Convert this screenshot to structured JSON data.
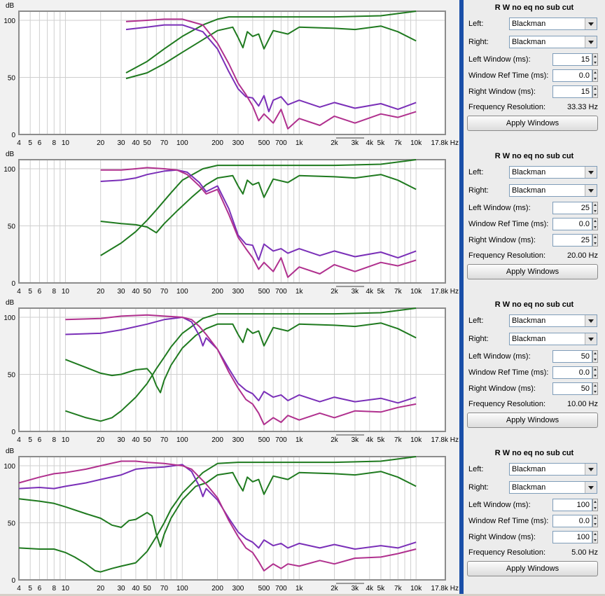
{
  "y_unit": "dB",
  "x_ticks": [
    "4",
    "5",
    "6",
    "8",
    "10",
    "20",
    "30",
    "40",
    "50",
    "70",
    "100",
    "200",
    "300",
    "500",
    "700",
    "1k",
    "2k",
    "3k",
    "4k",
    "5k",
    "7k",
    "10k",
    "17.8k Hz"
  ],
  "y_ticks": [
    "100",
    "50",
    "0"
  ],
  "colors": {
    "green": "#1f7a1f",
    "purple": "#7a2fb8",
    "magenta": "#b0308e",
    "grid": "#cfcfcf"
  },
  "apply_label": "Apply Windows",
  "labels": {
    "left": "Left:",
    "right": "Right:",
    "left_window": "Left Window (ms):",
    "ref_time": "Window Ref Time (ms):",
    "right_window": "Right Window (ms):",
    "freq_res": "Frequency Resolution:"
  },
  "panels": [
    {
      "title": "R W no eq no sub cut",
      "left": "Blackman",
      "right": "Blackman",
      "left_window": "15",
      "ref_time": "0.0",
      "right_window": "15",
      "freq_res": "33.33 Hz"
    },
    {
      "title": "R W no eq no sub cut",
      "left": "Blackman",
      "right": "Blackman",
      "left_window": "25",
      "ref_time": "0.0",
      "right_window": "25",
      "freq_res": "20.00 Hz"
    },
    {
      "title": "R W no eq no sub cut",
      "left": "Blackman",
      "right": "Blackman",
      "left_window": "50",
      "ref_time": "0.0",
      "right_window": "50",
      "freq_res": "10.00 Hz"
    },
    {
      "title": "R W no eq no sub cut",
      "left": "Blackman",
      "right": "Blackman",
      "left_window": "100",
      "ref_time": "0.0",
      "right_window": "100",
      "freq_res": "5.00 Hz"
    }
  ],
  "chart_data": [
    {
      "type": "line",
      "x_scale": "log",
      "xlim": [
        4,
        17800
      ],
      "ylim": [
        0,
        108
      ],
      "ylabel": "dB",
      "grid": true,
      "series": [
        {
          "color": "green",
          "x": [
            33,
            50,
            70,
            100,
            150,
            200,
            250,
            300,
            400,
            500,
            700,
            1000,
            2000,
            5000,
            10000
          ],
          "y": [
            54,
            64,
            75,
            86,
            96,
            101,
            103,
            103,
            103,
            103,
            103,
            103,
            103,
            104,
            108
          ]
        },
        {
          "color": "green",
          "x": [
            33,
            50,
            70,
            100,
            150,
            200,
            270,
            300,
            330,
            360,
            400,
            450,
            500,
            600,
            800,
            1000,
            2000,
            3000,
            5000,
            7000,
            10000
          ],
          "y": [
            49,
            54,
            62,
            72,
            83,
            91,
            94,
            85,
            76,
            90,
            86,
            88,
            75,
            91,
            88,
            94,
            93,
            92,
            95,
            90,
            82
          ]
        },
        {
          "color": "purple",
          "x": [
            33,
            50,
            70,
            100,
            150,
            200,
            250,
            300,
            350,
            400,
            450,
            500,
            550,
            600,
            700,
            800,
            1000,
            1500,
            2000,
            3000,
            5000,
            7000,
            10000
          ],
          "y": [
            92,
            94,
            96,
            96,
            90,
            75,
            55,
            40,
            33,
            32,
            25,
            34,
            20,
            30,
            33,
            26,
            30,
            24,
            28,
            23,
            27,
            22,
            28
          ]
        },
        {
          "color": "magenta",
          "x": [
            33,
            50,
            70,
            100,
            150,
            200,
            250,
            300,
            350,
            400,
            450,
            500,
            600,
            700,
            800,
            1000,
            1500,
            2000,
            3000,
            5000,
            7000,
            10000
          ],
          "y": [
            99,
            100,
            101,
            101,
            96,
            80,
            62,
            45,
            35,
            25,
            12,
            18,
            10,
            22,
            5,
            14,
            8,
            16,
            10,
            18,
            15,
            20
          ]
        }
      ]
    },
    {
      "type": "line",
      "x_scale": "log",
      "xlim": [
        4,
        17800
      ],
      "ylim": [
        0,
        108
      ],
      "ylabel": "dB",
      "grid": true,
      "series": [
        {
          "color": "green",
          "x": [
            20,
            30,
            40,
            50,
            60,
            80,
            100,
            150,
            200,
            300,
            500,
            1000,
            2000,
            5000,
            10000
          ],
          "y": [
            24,
            35,
            45,
            55,
            64,
            79,
            90,
            100,
            103,
            103,
            103,
            103,
            103,
            104,
            108
          ]
        },
        {
          "color": "green",
          "x": [
            20,
            30,
            40,
            50,
            60,
            70,
            90,
            120,
            160,
            200,
            270,
            300,
            330,
            360,
            400,
            450,
            500,
            600,
            800,
            1000,
            2000,
            3000,
            5000,
            7000,
            10000
          ],
          "y": [
            54,
            52,
            51,
            49,
            44,
            52,
            63,
            75,
            86,
            92,
            94,
            85,
            78,
            90,
            86,
            88,
            75,
            91,
            88,
            94,
            93,
            92,
            95,
            90,
            82
          ]
        },
        {
          "color": "purple",
          "x": [
            20,
            30,
            40,
            50,
            70,
            90,
            110,
            140,
            160,
            200,
            250,
            300,
            350,
            400,
            450,
            500,
            600,
            700,
            800,
            1000,
            1500,
            2000,
            3000,
            5000,
            7000,
            10000
          ],
          "y": [
            89,
            90,
            92,
            95,
            98,
            99,
            97,
            88,
            80,
            85,
            65,
            42,
            34,
            33,
            20,
            34,
            28,
            30,
            26,
            30,
            24,
            28,
            23,
            27,
            22,
            28
          ]
        },
        {
          "color": "magenta",
          "x": [
            20,
            30,
            40,
            50,
            70,
            90,
            110,
            140,
            160,
            200,
            250,
            300,
            350,
            400,
            450,
            500,
            600,
            700,
            800,
            1000,
            1500,
            2000,
            3000,
            5000,
            7000,
            10000
          ],
          "y": [
            99,
            99,
            100,
            101,
            100,
            99,
            95,
            85,
            78,
            82,
            60,
            40,
            30,
            22,
            12,
            18,
            10,
            22,
            5,
            14,
            8,
            16,
            10,
            18,
            15,
            20
          ]
        }
      ]
    },
    {
      "type": "line",
      "x_scale": "log",
      "xlim": [
        4,
        17800
      ],
      "ylim": [
        0,
        108
      ],
      "ylabel": "dB",
      "grid": true,
      "series": [
        {
          "color": "green",
          "x": [
            10,
            15,
            20,
            25,
            30,
            40,
            50,
            60,
            70,
            80,
            100,
            150,
            200,
            300,
            500,
            1000,
            2000,
            5000,
            10000
          ],
          "y": [
            18,
            12,
            9,
            12,
            18,
            30,
            42,
            55,
            65,
            74,
            86,
            99,
            103,
            103,
            103,
            103,
            103,
            104,
            108
          ]
        },
        {
          "color": "green",
          "x": [
            10,
            15,
            20,
            25,
            30,
            40,
            50,
            55,
            60,
            65,
            70,
            80,
            100,
            130,
            160,
            200,
            270,
            300,
            330,
            360,
            400,
            450,
            500,
            600,
            800,
            1000,
            2000,
            3000,
            5000,
            7000,
            10000
          ],
          "y": [
            63,
            56,
            51,
            49,
            50,
            54,
            55,
            50,
            40,
            34,
            45,
            58,
            73,
            84,
            90,
            94,
            94,
            85,
            78,
            90,
            86,
            88,
            75,
            91,
            88,
            94,
            93,
            92,
            95,
            90,
            82
          ]
        },
        {
          "color": "purple",
          "x": [
            10,
            20,
            30,
            50,
            70,
            100,
            120,
            140,
            150,
            160,
            200,
            250,
            300,
            350,
            400,
            450,
            500,
            600,
            700,
            800,
            1000,
            1500,
            2000,
            3000,
            5000,
            7000,
            10000
          ],
          "y": [
            85,
            86,
            89,
            94,
            98,
            100,
            96,
            84,
            75,
            82,
            72,
            55,
            42,
            36,
            33,
            27,
            35,
            30,
            32,
            27,
            32,
            26,
            30,
            26,
            29,
            25,
            30
          ]
        },
        {
          "color": "magenta",
          "x": [
            10,
            20,
            30,
            50,
            70,
            100,
            120,
            140,
            160,
            200,
            250,
            300,
            350,
            400,
            450,
            500,
            600,
            700,
            800,
            1000,
            1500,
            2000,
            3000,
            5000,
            7000,
            10000
          ],
          "y": [
            98,
            99,
            101,
            102,
            101,
            100,
            98,
            92,
            85,
            72,
            52,
            38,
            28,
            24,
            16,
            6,
            12,
            8,
            14,
            10,
            16,
            12,
            18,
            17,
            21,
            24
          ]
        }
      ]
    },
    {
      "type": "line",
      "x_scale": "log",
      "xlim": [
        4,
        17800
      ],
      "ylim": [
        0,
        108
      ],
      "ylabel": "dB",
      "grid": true,
      "series": [
        {
          "color": "green",
          "x": [
            4,
            6,
            8,
            10,
            12,
            15,
            18,
            20,
            25,
            30,
            40,
            50,
            60,
            70,
            80,
            100,
            150,
            200,
            300,
            500,
            1000,
            2000,
            5000,
            10000
          ],
          "y": [
            28,
            27,
            27,
            24,
            20,
            14,
            8,
            7,
            10,
            12,
            15,
            25,
            38,
            50,
            62,
            76,
            94,
            102,
            103,
            103,
            103,
            103,
            104,
            108
          ]
        },
        {
          "color": "green",
          "x": [
            4,
            6,
            8,
            10,
            15,
            20,
            25,
            30,
            35,
            40,
            50,
            55,
            60,
            65,
            70,
            80,
            100,
            130,
            160,
            200,
            270,
            300,
            330,
            360,
            400,
            450,
            500,
            600,
            800,
            1000,
            2000,
            3000,
            5000,
            7000,
            10000
          ],
          "y": [
            71,
            69,
            67,
            64,
            58,
            54,
            48,
            46,
            52,
            53,
            59,
            56,
            40,
            29,
            40,
            54,
            70,
            82,
            85,
            92,
            94,
            85,
            78,
            90,
            86,
            88,
            75,
            91,
            88,
            94,
            93,
            92,
            95,
            90,
            82
          ]
        },
        {
          "color": "purple",
          "x": [
            4,
            6,
            8,
            10,
            15,
            20,
            30,
            40,
            50,
            70,
            100,
            120,
            140,
            150,
            160,
            200,
            250,
            300,
            350,
            400,
            450,
            500,
            600,
            700,
            800,
            1000,
            1500,
            2000,
            3000,
            5000,
            7000,
            10000
          ],
          "y": [
            80,
            81,
            80,
            82,
            85,
            88,
            92,
            97,
            98,
            99,
            101,
            95,
            82,
            73,
            80,
            70,
            54,
            42,
            36,
            33,
            28,
            35,
            30,
            32,
            28,
            32,
            28,
            31,
            27,
            30,
            28,
            33
          ]
        },
        {
          "color": "magenta",
          "x": [
            4,
            6,
            8,
            10,
            15,
            20,
            30,
            40,
            50,
            70,
            100,
            120,
            140,
            160,
            200,
            250,
            300,
            350,
            400,
            450,
            500,
            600,
            700,
            800,
            1000,
            1500,
            2000,
            3000,
            5000,
            7000,
            10000
          ],
          "y": [
            85,
            90,
            93,
            94,
            97,
            100,
            104,
            104,
            103,
            102,
            100,
            97,
            90,
            84,
            72,
            52,
            38,
            28,
            24,
            16,
            8,
            14,
            10,
            14,
            12,
            17,
            14,
            19,
            20,
            23,
            27
          ]
        }
      ]
    }
  ]
}
